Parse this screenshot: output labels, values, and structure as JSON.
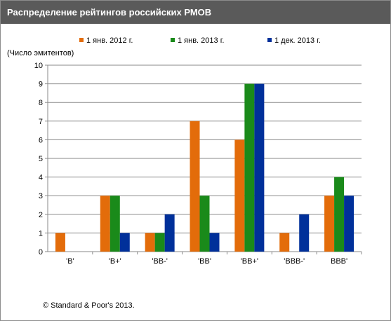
{
  "header": {
    "title": "Распределение рейтингов российских РМОВ"
  },
  "footer": {
    "copyright": "© Standard & Poor's 2013."
  },
  "chart_data": {
    "type": "bar",
    "title": "Распределение рейтингов российских РМОВ",
    "ylabel": "(Число эмитентов)",
    "xlabel": "",
    "ylim": [
      0,
      10
    ],
    "yticks": [
      0,
      1,
      2,
      3,
      4,
      5,
      6,
      7,
      8,
      9,
      10
    ],
    "grid": true,
    "legend_position": "top",
    "categories": [
      "'B'",
      "'B+'",
      "'BB-'",
      "'BB'",
      "'BB+'",
      "'BBB-'",
      "BBB'"
    ],
    "series": [
      {
        "name": "1 янв. 2012 г.",
        "color": "#e36c0a",
        "values": [
          1,
          3,
          1,
          7,
          6,
          1,
          3
        ]
      },
      {
        "name": "1 янв. 2013 г.",
        "color": "#1a8a1a",
        "values": [
          0,
          3,
          1,
          3,
          9,
          0,
          4
        ]
      },
      {
        "name": "1 дек. 2013 г.",
        "color": "#00309a",
        "values": [
          0,
          1,
          2,
          1,
          9,
          2,
          3
        ]
      }
    ]
  }
}
